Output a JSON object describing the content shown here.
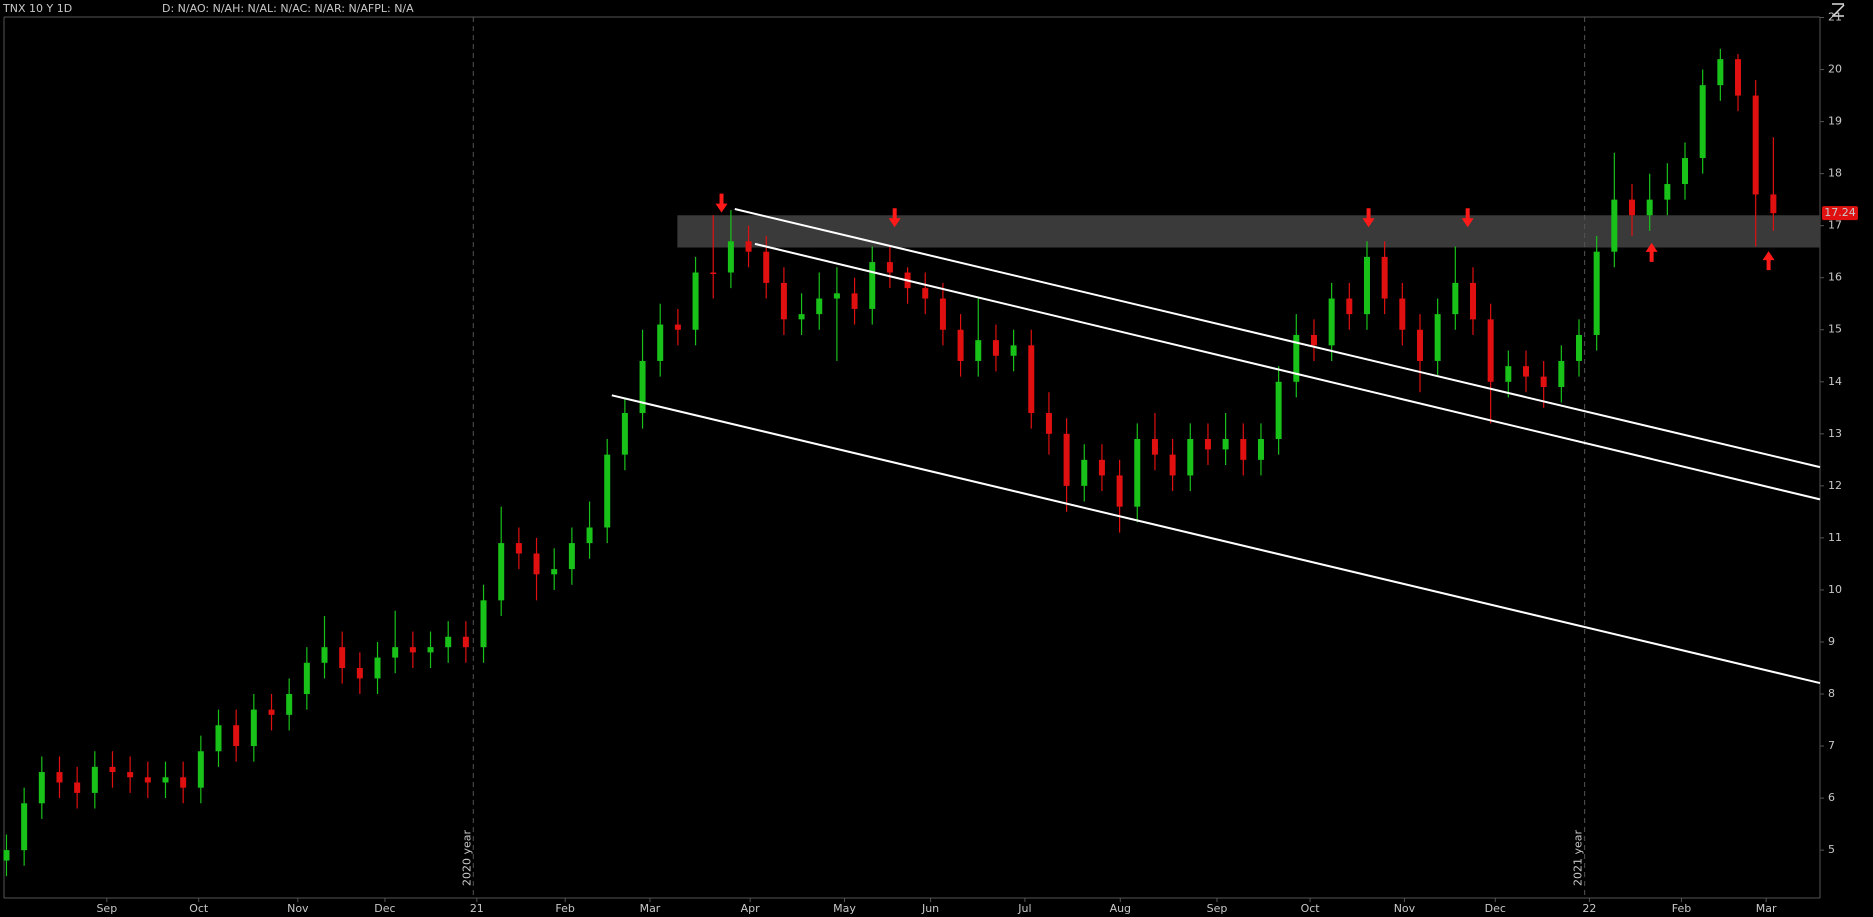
{
  "chart_data": {
    "type": "candlestick",
    "title": "TNX 10 Y 1D",
    "subtitle": "D: N/AO: N/AH: N/AL: N/AC: N/AR: N/AFPL: N/A",
    "up_color": "#19c219",
    "down_color": "#e01010",
    "open": [
      4.8,
      5.0,
      5.9,
      6.5,
      6.3,
      6.1,
      6.6,
      6.5,
      6.4,
      6.3,
      6.4,
      6.2,
      6.9,
      7.4,
      7.0,
      7.7,
      7.6,
      8.0,
      8.6,
      8.9,
      8.5,
      8.3,
      8.7,
      8.9,
      8.8,
      8.9,
      9.1,
      8.9,
      9.8,
      10.9,
      10.7,
      10.3,
      10.4,
      10.9,
      11.2,
      12.6,
      13.4,
      14.4,
      15.1,
      15.0,
      16.1,
      16.1,
      16.7,
      16.5,
      15.9,
      15.2,
      15.3,
      15.6,
      15.7,
      15.4,
      16.3,
      16.1,
      15.8,
      15.6,
      15.0,
      14.4,
      14.8,
      14.5,
      14.7,
      13.4,
      13.0,
      12.0,
      12.5,
      12.2,
      11.6,
      12.9,
      12.6,
      12.2,
      12.9,
      12.7,
      12.9,
      12.5,
      12.9,
      14.0,
      14.9,
      14.7,
      15.6,
      15.3,
      16.4,
      15.6,
      15.0,
      14.4,
      15.3,
      15.9,
      15.2,
      14.0,
      14.3,
      14.1,
      13.9,
      14.4,
      14.9,
      16.5,
      17.5,
      17.2,
      17.5,
      17.8,
      18.3,
      19.7,
      20.2,
      19.5,
      17.6
    ],
    "high": [
      5.3,
      6.2,
      6.8,
      6.8,
      6.6,
      6.9,
      6.9,
      6.8,
      6.7,
      6.7,
      6.7,
      7.2,
      7.7,
      7.7,
      8.0,
      8.0,
      8.3,
      8.9,
      9.5,
      9.2,
      8.8,
      9.0,
      9.6,
      9.2,
      9.2,
      9.4,
      9.4,
      10.1,
      11.6,
      11.2,
      11.0,
      10.8,
      11.2,
      11.7,
      12.9,
      13.7,
      15.0,
      15.5,
      15.4,
      16.4,
      17.2,
      17.3,
      17.0,
      16.8,
      16.2,
      15.7,
      16.1,
      16.2,
      16.0,
      16.6,
      16.6,
      16.2,
      16.1,
      15.9,
      15.3,
      15.6,
      15.1,
      15.0,
      15.0,
      13.8,
      13.3,
      12.8,
      12.8,
      12.5,
      13.2,
      13.4,
      12.9,
      13.2,
      13.2,
      13.4,
      13.2,
      13.2,
      14.3,
      15.3,
      15.2,
      15.9,
      15.9,
      16.7,
      16.7,
      15.9,
      15.3,
      15.6,
      16.6,
      16.2,
      15.5,
      14.6,
      14.6,
      14.4,
      14.7,
      15.2,
      16.8,
      18.4,
      17.8,
      18.0,
      18.2,
      18.6,
      20.0,
      20.4,
      20.3,
      19.8,
      18.7
    ],
    "low": [
      4.5,
      4.7,
      5.6,
      6.0,
      5.8,
      5.8,
      6.2,
      6.1,
      6.0,
      6.0,
      5.9,
      5.9,
      6.6,
      6.7,
      6.7,
      7.3,
      7.3,
      7.7,
      8.3,
      8.2,
      8.0,
      8.0,
      8.4,
      8.5,
      8.5,
      8.6,
      8.6,
      8.6,
      9.5,
      10.4,
      9.8,
      10.0,
      10.1,
      10.6,
      10.9,
      12.3,
      13.1,
      14.1,
      14.7,
      14.7,
      15.6,
      15.8,
      16.2,
      15.6,
      14.9,
      14.9,
      15.0,
      14.4,
      15.1,
      15.1,
      15.8,
      15.5,
      15.3,
      14.7,
      14.1,
      14.1,
      14.2,
      14.2,
      13.1,
      12.6,
      11.5,
      11.7,
      11.9,
      11.1,
      11.3,
      12.3,
      11.9,
      11.9,
      12.4,
      12.4,
      12.2,
      12.2,
      12.6,
      13.7,
      14.4,
      14.4,
      15.0,
      15.0,
      15.3,
      14.7,
      13.8,
      14.1,
      15.0,
      14.9,
      13.2,
      13.7,
      13.8,
      13.5,
      13.6,
      14.1,
      14.6,
      16.2,
      16.8,
      16.9,
      17.2,
      17.5,
      18.0,
      19.4,
      19.2,
      16.6,
      16.9
    ],
    "close": [
      5.0,
      5.9,
      6.5,
      6.3,
      6.1,
      6.6,
      6.5,
      6.4,
      6.3,
      6.4,
      6.2,
      6.9,
      7.4,
      7.0,
      7.7,
      7.6,
      8.0,
      8.6,
      8.9,
      8.5,
      8.3,
      8.7,
      8.9,
      8.8,
      8.9,
      9.1,
      8.9,
      9.8,
      10.9,
      10.7,
      10.3,
      10.4,
      10.9,
      11.2,
      12.6,
      13.4,
      14.4,
      15.1,
      15.0,
      16.1,
      16.1,
      16.7,
      16.5,
      15.9,
      15.2,
      15.3,
      15.6,
      15.7,
      15.4,
      16.3,
      16.1,
      15.8,
      15.6,
      15.0,
      14.4,
      14.8,
      14.5,
      14.7,
      13.4,
      13.0,
      12.0,
      12.5,
      12.2,
      11.6,
      12.9,
      12.6,
      12.2,
      12.9,
      12.7,
      12.9,
      12.5,
      12.9,
      14.0,
      14.9,
      14.7,
      15.6,
      15.3,
      16.4,
      15.6,
      15.0,
      14.4,
      15.3,
      15.9,
      15.2,
      14.0,
      14.3,
      14.1,
      13.9,
      14.4,
      14.9,
      16.5,
      17.5,
      17.2,
      17.5,
      17.8,
      18.3,
      19.7,
      20.2,
      19.5,
      17.6,
      17.24
    ],
    "xlim": [
      -0.14,
      102.64
    ],
    "xticks": [
      {
        "value": 5.68,
        "label": "Sep"
      },
      {
        "value": 10.88,
        "label": "Oct"
      },
      {
        "value": 16.49,
        "label": "Nov"
      },
      {
        "value": 21.42,
        "label": "Dec"
      },
      {
        "value": 26.62,
        "label": "21"
      },
      {
        "value": 31.62,
        "label": "Feb"
      },
      {
        "value": 36.42,
        "label": "Mar"
      },
      {
        "value": 42.09,
        "label": "Apr"
      },
      {
        "value": 47.43,
        "label": "May"
      },
      {
        "value": 52.3,
        "label": "Jun"
      },
      {
        "value": 57.64,
        "label": "Jul"
      },
      {
        "value": 63.04,
        "label": "Aug"
      },
      {
        "value": 68.51,
        "label": "Sep"
      },
      {
        "value": 73.78,
        "label": "Oct"
      },
      {
        "value": 79.12,
        "label": "Nov"
      },
      {
        "value": 84.26,
        "label": "Dec"
      },
      {
        "value": 89.59,
        "label": "22"
      },
      {
        "value": 94.8,
        "label": "Feb"
      },
      {
        "value": 99.59,
        "label": "Mar"
      }
    ],
    "ylim": [
      4.08,
      21.01
    ],
    "yticks": [
      5,
      6,
      7,
      8,
      9,
      10,
      11,
      12,
      13,
      14,
      15,
      16,
      17,
      18,
      19,
      20,
      21
    ],
    "separators": [
      {
        "x": 26.42,
        "label": "2020 year"
      },
      {
        "x": 89.32,
        "label": "2021 year"
      }
    ],
    "zone": {
      "x": [
        37.97,
        102.64
      ],
      "y": [
        16.58,
        17.2
      ],
      "color": "#3a3a3a"
    },
    "trendlines": [
      {
        "x": [
          41.22,
          102.64
        ],
        "y": [
          17.32,
          12.36
        ]
      },
      {
        "x": [
          42.36,
          102.64
        ],
        "y": [
          16.65,
          11.74
        ]
      },
      {
        "x": [
          34.26,
          102.64
        ],
        "y": [
          13.74,
          8.21
        ]
      }
    ],
    "arrows": {
      "x": [
        40.47,
        50.27,
        77.09,
        82.7,
        93.11,
        99.73
      ],
      "y": [
        17.25,
        16.97,
        16.97,
        16.97,
        16.67,
        16.51
      ],
      "direction": [
        "down",
        "down",
        "down",
        "down",
        "up",
        "up"
      ],
      "color": "#ff1a1a"
    }
  }
}
